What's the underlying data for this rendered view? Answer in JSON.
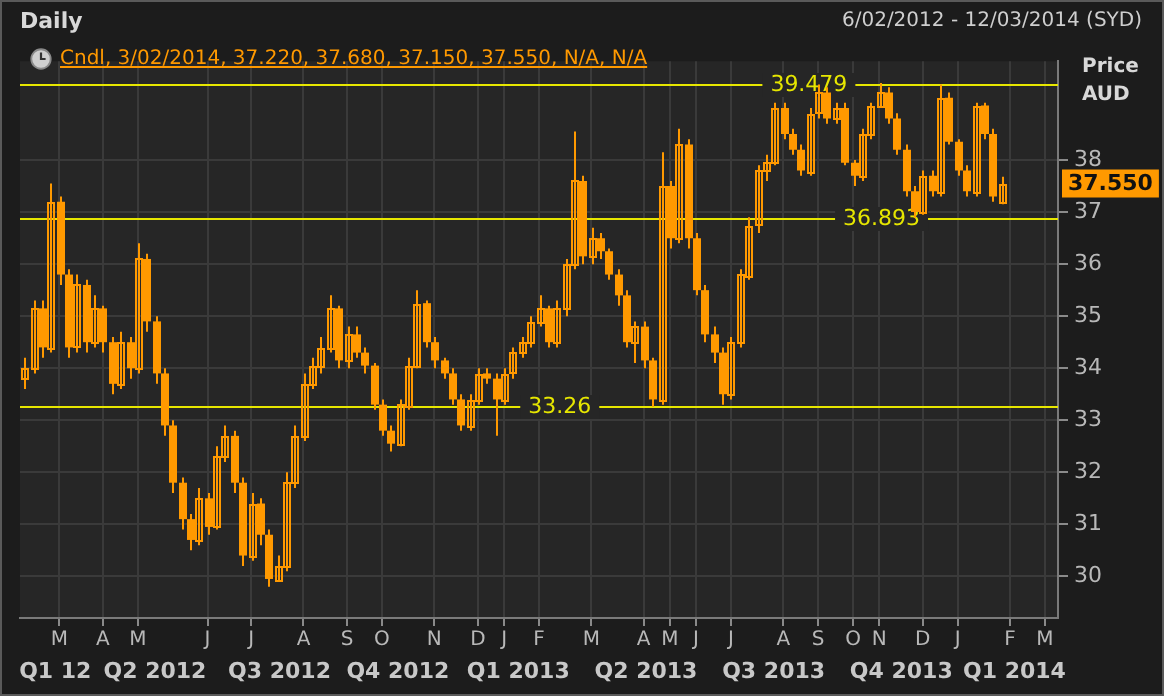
{
  "chart_data": {
    "type": "candlestick",
    "title": "Daily",
    "subtitle": "6/02/2012 - 12/03/2014 (SYD)",
    "ylabel": "Price AUD",
    "annotations": [
      "Cndl, 3/02/2014, 37.220, 37.680, 37.150, 37.550, N/A, N/A",
      "37.550",
      "Q1 12",
      "Q2 2012",
      "Q3 2012",
      "Q4 2012",
      "Q1 2013",
      "Q2 2013",
      "Q3 2013",
      "Q4 2013",
      "Q1 2014"
    ],
    "color": "#ff9900",
    "grid": true,
    "categories": [
      null,
      null,
      null,
      null,
      "M",
      null,
      null,
      null,
      null,
      "A",
      null,
      null,
      null,
      "M",
      null,
      null,
      null,
      null,
      null,
      null,
      null,
      "J",
      null,
      null,
      null,
      null,
      "J",
      null,
      null,
      null,
      null,
      null,
      "A",
      null,
      null,
      null,
      null,
      "S",
      null,
      null,
      null,
      "O",
      null,
      null,
      null,
      null,
      null,
      "N",
      null,
      null,
      null,
      null,
      "D",
      null,
      null,
      "J",
      null,
      null,
      null,
      "F",
      null,
      null,
      null,
      null,
      null,
      "M",
      null,
      null,
      null,
      null,
      null,
      "A",
      null,
      null,
      "M",
      null,
      null,
      "J",
      null,
      null,
      null,
      "J",
      null,
      null,
      null,
      null,
      null,
      "A",
      null,
      null,
      null,
      "S",
      null,
      null,
      null,
      "O",
      null,
      null,
      "N",
      null,
      null,
      null,
      null,
      "D",
      null,
      null,
      null,
      "J",
      null,
      null,
      null,
      null,
      null,
      "F",
      null,
      null,
      null,
      "M",
      null
    ],
    "ylim": [
      29.2,
      39.9
    ],
    "yticks": [
      30,
      31,
      32,
      33,
      34,
      35,
      36,
      37,
      38
    ],
    "ref_lines": [
      {
        "axis": "y",
        "value": 39.479,
        "label": "39.479",
        "color": "#e6e600"
      },
      {
        "axis": "y",
        "value": 36.893,
        "label": "36.893",
        "color": "#e6e600"
      },
      {
        "axis": "y",
        "value": 33.26,
        "label": "33.26",
        "color": "#e6e600"
      }
    ],
    "ohlc": [
      [
        33.8,
        34.2,
        33.6,
        34.0
      ],
      [
        34.0,
        35.3,
        33.9,
        35.15
      ],
      [
        35.15,
        35.3,
        34.2,
        34.4
      ],
      [
        34.4,
        37.55,
        34.3,
        37.2
      ],
      [
        37.2,
        37.3,
        35.6,
        35.8
      ],
      [
        35.8,
        35.9,
        34.2,
        34.4
      ],
      [
        34.4,
        35.8,
        34.3,
        35.6
      ],
      [
        35.6,
        35.7,
        34.3,
        34.5
      ],
      [
        34.5,
        35.4,
        34.4,
        35.15
      ],
      [
        35.15,
        35.2,
        34.3,
        34.5
      ],
      [
        34.5,
        34.6,
        33.5,
        33.7
      ],
      [
        33.7,
        34.7,
        33.6,
        34.5
      ],
      [
        34.5,
        34.6,
        33.8,
        34.0
      ],
      [
        34.0,
        36.4,
        33.9,
        36.1
      ],
      [
        36.1,
        36.2,
        34.7,
        34.9
      ],
      [
        34.9,
        35.0,
        33.7,
        33.9
      ],
      [
        33.9,
        34.0,
        32.7,
        32.9
      ],
      [
        32.9,
        33.0,
        31.6,
        31.8
      ],
      [
        31.8,
        31.9,
        30.9,
        31.1
      ],
      [
        31.1,
        31.2,
        30.5,
        30.7
      ],
      [
        30.7,
        31.7,
        30.6,
        31.5
      ],
      [
        31.5,
        31.6,
        30.8,
        30.95
      ],
      [
        30.95,
        32.5,
        30.9,
        32.3
      ],
      [
        32.3,
        32.9,
        32.2,
        32.7
      ],
      [
        32.7,
        32.8,
        31.6,
        31.8
      ],
      [
        31.8,
        31.9,
        30.2,
        30.4
      ],
      [
        30.4,
        31.6,
        30.3,
        31.4
      ],
      [
        31.4,
        31.5,
        30.6,
        30.8
      ],
      [
        30.8,
        30.9,
        29.8,
        29.95
      ],
      [
        29.95,
        30.4,
        29.9,
        30.2
      ],
      [
        30.2,
        32.0,
        30.1,
        31.8
      ],
      [
        31.8,
        32.9,
        31.7,
        32.7
      ],
      [
        32.7,
        33.9,
        32.6,
        33.7
      ],
      [
        33.7,
        34.2,
        33.6,
        34.05
      ],
      [
        34.05,
        34.6,
        33.9,
        34.4
      ],
      [
        34.4,
        35.4,
        34.3,
        35.15
      ],
      [
        35.15,
        35.2,
        34.0,
        34.15
      ],
      [
        34.15,
        34.8,
        34.0,
        34.65
      ],
      [
        34.65,
        34.8,
        34.2,
        34.3
      ],
      [
        34.3,
        34.4,
        33.9,
        34.05
      ],
      [
        34.05,
        34.1,
        33.2,
        33.3
      ],
      [
        33.3,
        33.4,
        32.7,
        32.8
      ],
      [
        32.8,
        32.9,
        32.4,
        32.55
      ],
      [
        32.55,
        33.4,
        32.5,
        33.3
      ],
      [
        33.3,
        34.2,
        33.2,
        34.05
      ],
      [
        34.05,
        35.5,
        34.0,
        35.25
      ],
      [
        35.25,
        35.3,
        34.4,
        34.5
      ],
      [
        34.5,
        34.6,
        34.0,
        34.15
      ],
      [
        34.15,
        34.2,
        33.8,
        33.9
      ],
      [
        33.9,
        34.0,
        33.3,
        33.4
      ],
      [
        33.4,
        33.5,
        32.8,
        32.9
      ],
      [
        32.9,
        33.5,
        32.8,
        33.4
      ],
      [
        33.4,
        34.0,
        33.3,
        33.9
      ],
      [
        33.9,
        34.0,
        33.7,
        33.8
      ],
      [
        33.8,
        33.9,
        32.7,
        33.4
      ],
      [
        33.4,
        34.0,
        33.3,
        33.9
      ],
      [
        33.9,
        34.4,
        33.8,
        34.3
      ],
      [
        34.3,
        34.6,
        34.2,
        34.5
      ],
      [
        34.5,
        35.0,
        34.4,
        34.9
      ],
      [
        34.9,
        35.4,
        34.8,
        35.15
      ],
      [
        35.15,
        35.2,
        34.4,
        34.5
      ],
      [
        34.5,
        35.3,
        34.4,
        35.15
      ],
      [
        35.15,
        36.1,
        35.0,
        36.0
      ],
      [
        36.0,
        38.55,
        35.9,
        37.6
      ],
      [
        37.6,
        37.7,
        36.0,
        36.15
      ],
      [
        36.15,
        36.7,
        36.0,
        36.5
      ],
      [
        36.5,
        36.6,
        36.1,
        36.25
      ],
      [
        36.25,
        36.3,
        35.7,
        35.8
      ],
      [
        35.8,
        35.9,
        35.2,
        35.4
      ],
      [
        35.4,
        35.5,
        34.4,
        34.5
      ],
      [
        34.5,
        34.9,
        34.1,
        34.8
      ],
      [
        34.8,
        34.9,
        34.0,
        34.15
      ],
      [
        34.15,
        34.2,
        33.26,
        33.4
      ],
      [
        33.4,
        38.15,
        33.3,
        37.5
      ],
      [
        37.5,
        37.6,
        36.3,
        36.5
      ],
      [
        36.5,
        38.6,
        36.4,
        38.3
      ],
      [
        38.3,
        38.4,
        36.3,
        36.5
      ],
      [
        36.5,
        36.6,
        35.4,
        35.5
      ],
      [
        35.5,
        35.6,
        34.5,
        34.65
      ],
      [
        34.65,
        34.8,
        34.1,
        34.3
      ],
      [
        34.3,
        34.4,
        33.3,
        33.5
      ],
      [
        33.5,
        34.6,
        33.4,
        34.5
      ],
      [
        34.5,
        35.9,
        34.4,
        35.8
      ],
      [
        35.8,
        36.9,
        35.7,
        36.75
      ],
      [
        36.75,
        37.9,
        36.6,
        37.8
      ],
      [
        37.8,
        38.1,
        37.6,
        37.95
      ],
      [
        37.95,
        39.1,
        37.9,
        39.0
      ],
      [
        39.0,
        39.1,
        38.4,
        38.5
      ],
      [
        38.5,
        38.6,
        38.1,
        38.2
      ],
      [
        38.2,
        38.3,
        37.7,
        37.8
      ],
      [
        37.8,
        39.0,
        37.7,
        38.9
      ],
      [
        38.9,
        39.45,
        38.8,
        39.3
      ],
      [
        39.3,
        39.4,
        38.7,
        38.8
      ],
      [
        38.8,
        39.1,
        38.7,
        39.0
      ],
      [
        39.0,
        39.1,
        37.9,
        37.95
      ],
      [
        37.95,
        38.0,
        37.5,
        37.7
      ],
      [
        37.7,
        38.6,
        37.6,
        38.5
      ],
      [
        38.5,
        39.1,
        38.4,
        39.05
      ],
      [
        39.05,
        39.479,
        39.0,
        39.3
      ],
      [
        39.3,
        39.4,
        38.7,
        38.8
      ],
      [
        38.8,
        38.9,
        38.1,
        38.2
      ],
      [
        38.2,
        38.3,
        37.3,
        37.4
      ],
      [
        37.4,
        37.5,
        36.893,
        37.0
      ],
      [
        37.0,
        37.8,
        36.95,
        37.7
      ],
      [
        37.7,
        37.8,
        37.3,
        37.4
      ],
      [
        37.4,
        39.45,
        37.3,
        39.2
      ],
      [
        39.2,
        39.3,
        38.3,
        38.35
      ],
      [
        38.35,
        38.4,
        37.7,
        37.8
      ],
      [
        37.8,
        37.9,
        37.3,
        37.4
      ],
      [
        37.4,
        39.1,
        37.3,
        39.05
      ],
      [
        39.05,
        39.1,
        38.4,
        38.5
      ],
      [
        38.5,
        38.6,
        37.2,
        37.3
      ],
      [
        37.22,
        37.68,
        37.15,
        37.55
      ],
      null,
      null,
      null,
      null,
      null,
      null
    ]
  }
}
